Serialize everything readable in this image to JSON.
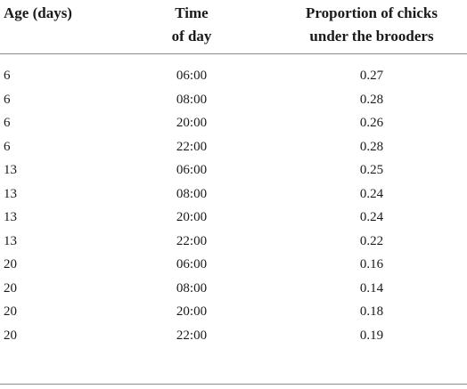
{
  "table": {
    "headers": {
      "age": [
        "Age (days)"
      ],
      "time": [
        "Time",
        "of day"
      ],
      "proportion": [
        "Proportion of chicks",
        "under the brooders"
      ]
    },
    "rows": [
      {
        "age": "6",
        "time": "06:00",
        "proportion": "0.27"
      },
      {
        "age": "6",
        "time": "08:00",
        "proportion": "0.28"
      },
      {
        "age": "6",
        "time": "20:00",
        "proportion": "0.26"
      },
      {
        "age": "6",
        "time": "22:00",
        "proportion": "0.28"
      },
      {
        "age": "13",
        "time": "06:00",
        "proportion": "0.25"
      },
      {
        "age": "13",
        "time": "08:00",
        "proportion": "0.24"
      },
      {
        "age": "13",
        "time": "20:00",
        "proportion": "0.24"
      },
      {
        "age": "13",
        "time": "22:00",
        "proportion": "0.22"
      },
      {
        "age": "20",
        "time": "06:00",
        "proportion": "0.16"
      },
      {
        "age": "20",
        "time": "08:00",
        "proportion": "0.14"
      },
      {
        "age": "20",
        "time": "20:00",
        "proportion": "0.18"
      },
      {
        "age": "20",
        "time": "22:00",
        "proportion": "0.19"
      }
    ]
  }
}
